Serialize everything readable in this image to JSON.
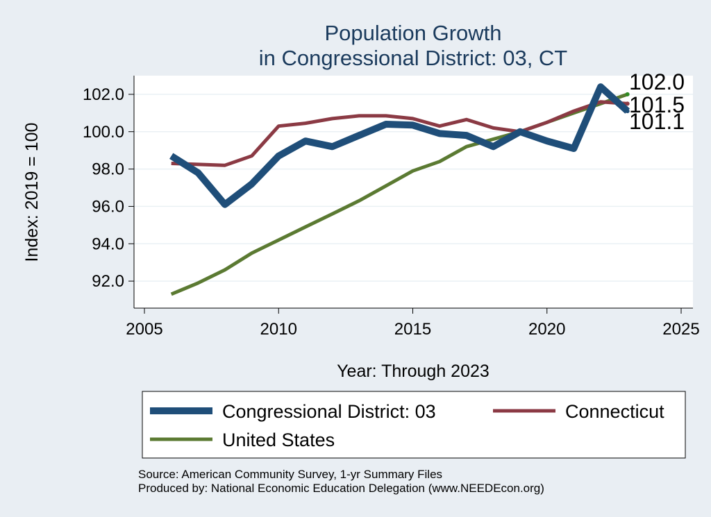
{
  "chart_data": {
    "type": "line",
    "title": [
      "Population Growth",
      "in Congressional District: 03, CT"
    ],
    "xlabel": "Year: Through 2023",
    "ylabel": "Index: 2019 = 100",
    "xlim": [
      2005,
      2025
    ],
    "ylim": [
      91.0,
      103.0
    ],
    "x_ticks": [
      2005,
      2010,
      2015,
      2020,
      2025
    ],
    "y_ticks": [
      92.0,
      94.0,
      96.0,
      98.0,
      100.0,
      102.0
    ],
    "x_tick_labels": [
      "2005",
      "2010",
      "2015",
      "2020",
      "2025"
    ],
    "y_tick_labels": [
      "92.0",
      "94.0",
      "96.0",
      "98.0",
      "100.0",
      "102.0"
    ],
    "grid": true,
    "legend_position": "bottom",
    "x": [
      2006,
      2007,
      2008,
      2009,
      2010,
      2011,
      2012,
      2013,
      2014,
      2015,
      2016,
      2017,
      2018,
      2019,
      2020,
      2021,
      2022,
      2023
    ],
    "series": [
      {
        "name": "Congressional District: 03",
        "color": "#1f4e79",
        "values": [
          98.7,
          97.8,
          96.1,
          97.2,
          98.7,
          99.5,
          99.2,
          99.8,
          100.4,
          100.35,
          99.9,
          99.8,
          99.2,
          100.0,
          99.5,
          99.1,
          102.4,
          101.1
        ],
        "end_label": "101.1"
      },
      {
        "name": "Connecticut",
        "color": "#8b3a44",
        "values": [
          98.3,
          98.25,
          98.2,
          98.7,
          100.3,
          100.45,
          100.7,
          100.85,
          100.85,
          100.7,
          100.3,
          100.65,
          100.2,
          100.0,
          100.5,
          101.1,
          101.6,
          101.5
        ],
        "end_label": "101.5"
      },
      {
        "name": "United States",
        "color": "#5b7a32",
        "values": [
          91.3,
          91.9,
          92.6,
          93.5,
          94.2,
          94.9,
          95.6,
          96.3,
          97.1,
          97.9,
          98.4,
          99.2,
          99.6,
          100.0,
          100.5,
          101.0,
          101.5,
          102.0
        ],
        "end_label": "102.0"
      }
    ]
  },
  "source_line1": "Source: American Community Survey, 1-yr Summary Files",
  "source_line2": "Produced by: National Economic Education Delegation (www.NEEDEcon.org)"
}
